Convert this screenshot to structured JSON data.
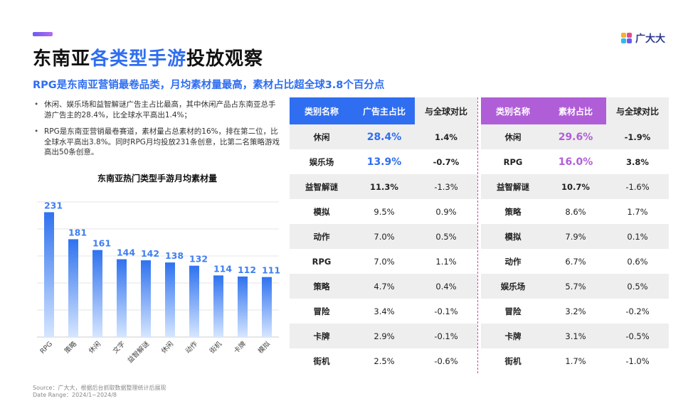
{
  "header": {
    "title_part1": "东南亚",
    "title_highlight": "各类型手游",
    "title_part2": "投放观察",
    "subtitle": "RPG是东南亚营销最卷品类，月均素材量最高，素材占比超全球3.8个百分点",
    "logo_text": "广大大"
  },
  "bullets": [
    "休闲、娱乐场和益智解谜广告主占比最高，其中休闲产品占东南亚总手游广告主的28.4%，比全球水平高出1.4%；",
    "RPG是东南亚营销最卷赛道，素材量占总素材的16%，排在第二位，比全球水平高出3.8%。同时RPG月均投放231条创意，比第二名策略游戏高出50条创意。"
  ],
  "chart_data": {
    "type": "bar",
    "title": "东南亚热门类型手游月均素材量",
    "categories": [
      "RPG",
      "策略",
      "休闲",
      "文字",
      "益智解谜",
      "休闲",
      "动作",
      "街机",
      "卡牌",
      "模拟"
    ],
    "values": [
      231,
      181,
      161,
      144,
      142,
      138,
      132,
      114,
      112,
      111
    ],
    "ylim": [
      0,
      250
    ],
    "grid": true,
    "colors": {
      "bar_top": "#2f72ef",
      "bar_bottom": "#d6e6ff",
      "label": "#3f7ff2"
    }
  },
  "table_left": {
    "headers": [
      "类别名称",
      "广告主占比",
      "与全球对比"
    ],
    "rows": [
      {
        "cat": "休闲",
        "share": "28.4%",
        "diff": "1.4%"
      },
      {
        "cat": "娱乐场",
        "share": "13.9%",
        "diff": "-0.7%"
      },
      {
        "cat": "益智解谜",
        "share": "11.3%",
        "diff": "-1.3%"
      },
      {
        "cat": "模拟",
        "share": "9.5%",
        "diff": "0.9%"
      },
      {
        "cat": "动作",
        "share": "7.0%",
        "diff": "0.5%"
      },
      {
        "cat": "RPG",
        "share": "7.0%",
        "diff": "1.1%"
      },
      {
        "cat": "策略",
        "share": "4.7%",
        "diff": "0.4%"
      },
      {
        "cat": "冒险",
        "share": "3.4%",
        "diff": "-0.1%"
      },
      {
        "cat": "卡牌",
        "share": "2.9%",
        "diff": "-0.1%"
      },
      {
        "cat": "街机",
        "share": "2.5%",
        "diff": "-0.6%"
      }
    ]
  },
  "table_right": {
    "headers": [
      "类别名称",
      "素材占比",
      "与全球对比"
    ],
    "rows": [
      {
        "cat": "休闲",
        "share": "29.6%",
        "diff": "-1.9%"
      },
      {
        "cat": "RPG",
        "share": "16.0%",
        "diff": "3.8%"
      },
      {
        "cat": "益智解谜",
        "share": "10.7%",
        "diff": "-1.6%"
      },
      {
        "cat": "策略",
        "share": "8.6%",
        "diff": "1.7%"
      },
      {
        "cat": "模拟",
        "share": "7.9%",
        "diff": "0.1%"
      },
      {
        "cat": "动作",
        "share": "6.7%",
        "diff": "0.6%"
      },
      {
        "cat": "娱乐场",
        "share": "5.7%",
        "diff": "0.5%"
      },
      {
        "cat": "冒险",
        "share": "3.2%",
        "diff": "-0.2%"
      },
      {
        "cat": "卡牌",
        "share": "3.1%",
        "diff": "-0.5%"
      },
      {
        "cat": "街机",
        "share": "1.7%",
        "diff": "-1.0%"
      }
    ]
  },
  "footer": {
    "source": "Source：广大大，根据后台抓取数据整理统计后展现",
    "date_range": "Date Range：2024/1~2024/8"
  }
}
